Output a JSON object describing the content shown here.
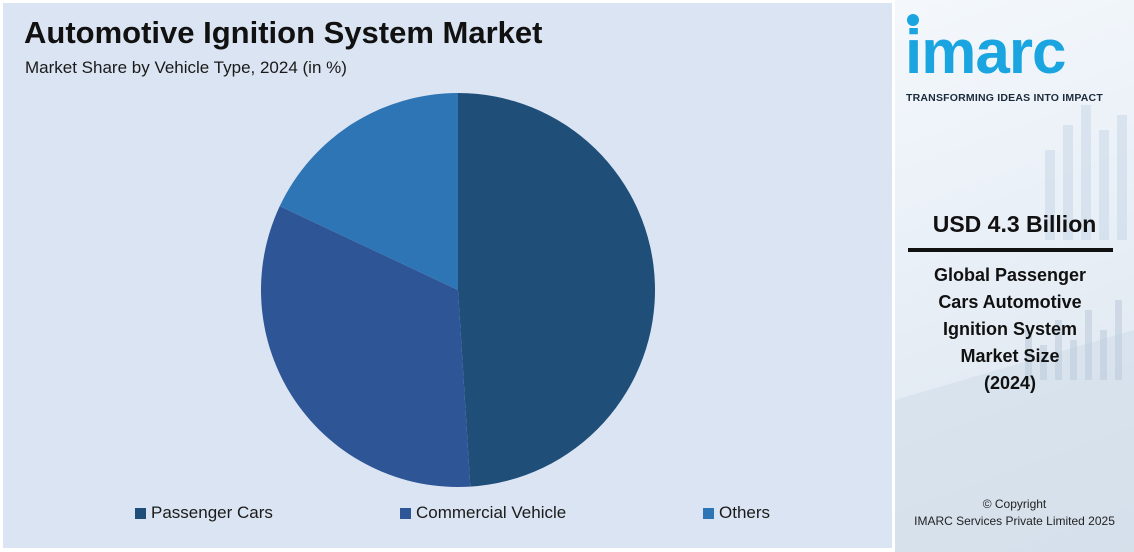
{
  "chart_data": {
    "type": "pie",
    "title": "Automotive Ignition System Market",
    "subtitle": "Market Share by Vehicle Type, 2024 (in %)",
    "categories": [
      "Passenger Cars",
      "Commercial Vehicle",
      "Others"
    ],
    "values": [
      49,
      33,
      18
    ],
    "colors": [
      "#1f4e79",
      "#2e5596",
      "#2e75b6"
    ],
    "legend": "bottom"
  },
  "sidebar": {
    "logo_text": "imarc",
    "tagline": "TRANSFORMING IDEAS INTO IMPACT",
    "stat_value": "USD 4.3 Billion",
    "stat_desc_lines": [
      "Global Passenger",
      "Cars Automotive",
      "Ignition System",
      "Market Size",
      "(2024)"
    ],
    "copyright_line1": "© Copyright",
    "copyright_line2": "IMARC Services Private Limited 2025",
    "accent_color": "#1aa5e0"
  }
}
